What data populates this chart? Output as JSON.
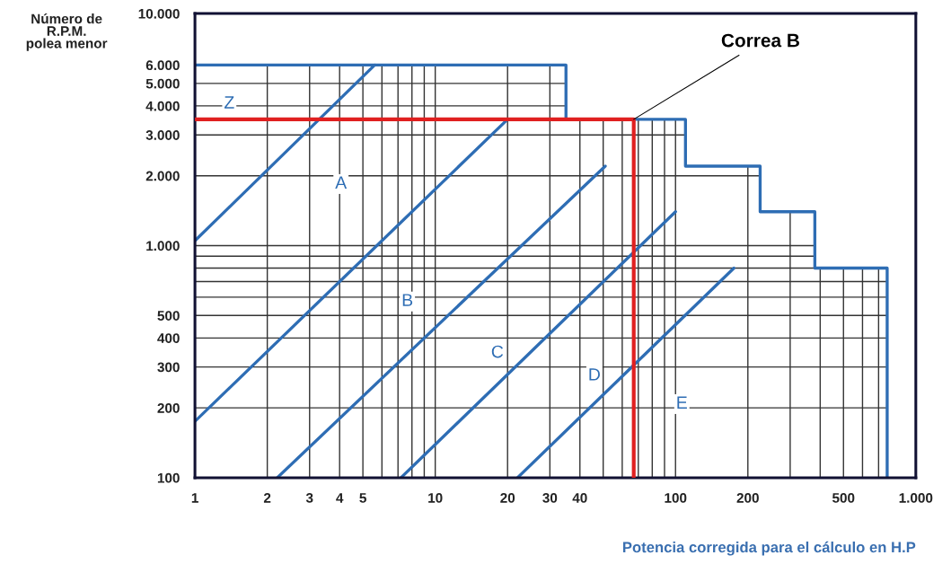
{
  "chart_data": {
    "type": "line",
    "xlabel": "Potencia corregida para el cálculo en H.P",
    "ylabel": "Número de\nR.P.M.\npolea menor",
    "log": "xy",
    "xlim": [
      1,
      1000
    ],
    "ylim": [
      100,
      10000
    ],
    "xticks": [
      1,
      2,
      3,
      4,
      5,
      10,
      20,
      30,
      40,
      100,
      200,
      500,
      {
        "value": 1000,
        "label": "1.000"
      }
    ],
    "yticks": [
      100,
      200,
      300,
      400,
      500,
      {
        "value": 1000,
        "label": "1.000"
      },
      {
        "value": 2000,
        "label": "2.000"
      },
      {
        "value": 3000,
        "label": "3.000"
      },
      {
        "value": 4000,
        "label": "4.000"
      },
      {
        "value": 5000,
        "label": "5.000"
      },
      {
        "value": 6000,
        "label": "6.000"
      },
      {
        "value": 10000,
        "label": "10.000"
      }
    ],
    "grid": true,
    "series": [
      {
        "color": "#2e6db4",
        "x": [
          1,
          35,
          35,
          110,
          110,
          225,
          225,
          380,
          380,
          760,
          760
        ],
        "values": [
          6000,
          6000,
          3500,
          3500,
          2200,
          2200,
          1400,
          1400,
          800,
          800,
          100
        ]
      },
      {
        "color": "#2e6db4",
        "x": [
          1,
          5.6
        ],
        "values": [
          1050,
          6000
        ]
      },
      {
        "color": "#2e6db4",
        "x": [
          1,
          20
        ],
        "values": [
          175,
          3500
        ]
      },
      {
        "color": "#2e6db4",
        "x": [
          2.2,
          51
        ],
        "values": [
          100,
          2200
        ]
      },
      {
        "color": "#2e6db4",
        "x": [
          7.2,
          100
        ],
        "values": [
          100,
          1400
        ]
      },
      {
        "color": "#2e6db4",
        "x": [
          22,
          175
        ],
        "values": [
          100,
          800
        ]
      },
      {
        "color": "#e02020",
        "x": [
          1,
          67,
          67
        ],
        "values": [
          3500,
          3500,
          100
        ]
      }
    ],
    "annotations": [
      "Z",
      "A",
      "B",
      "C",
      "D",
      "E",
      {
        "text": "Correa B",
        "x": 67,
        "y": 3500
      }
    ]
  }
}
